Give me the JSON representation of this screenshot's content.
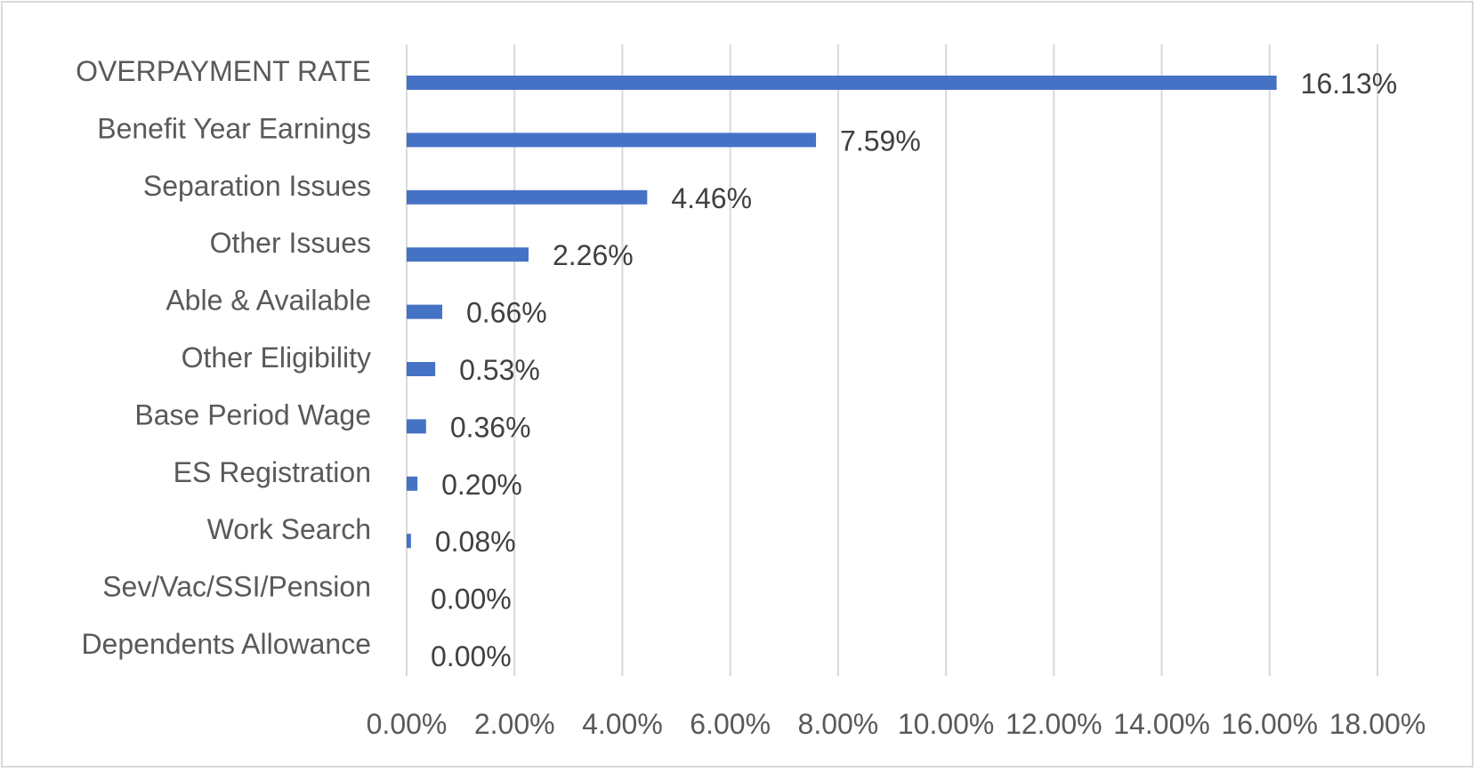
{
  "chart_data": {
    "type": "bar",
    "orientation": "horizontal",
    "categories": [
      "OVERPAYMENT RATE",
      "Benefit Year Earnings",
      "Separation Issues",
      "Other Issues",
      "Able & Available",
      "Other Eligibility",
      "Base Period Wage",
      "ES Registration",
      "Work Search",
      "Sev/Vac/SSI/Pension",
      "Dependents Allowance"
    ],
    "values": [
      16.13,
      7.59,
      4.46,
      2.26,
      0.66,
      0.53,
      0.36,
      0.2,
      0.08,
      0.0,
      0.0
    ],
    "data_labels": [
      "16.13%",
      "7.59%",
      "4.46%",
      "2.26%",
      "0.66%",
      "0.53%",
      "0.36%",
      "0.20%",
      "0.08%",
      "0.00%",
      "0.00%"
    ],
    "x_ticks": [
      0,
      2,
      4,
      6,
      8,
      10,
      12,
      14,
      16,
      18
    ],
    "x_tick_labels": [
      "0.00%",
      "2.00%",
      "4.00%",
      "6.00%",
      "8.00%",
      "10.00%",
      "12.00%",
      "14.00%",
      "16.00%",
      "18.00%"
    ],
    "xlim": [
      0,
      18
    ],
    "title": "",
    "xlabel": "",
    "ylabel": "",
    "grid": "vertical",
    "legend": "none",
    "bar_color": "#4472c4"
  }
}
